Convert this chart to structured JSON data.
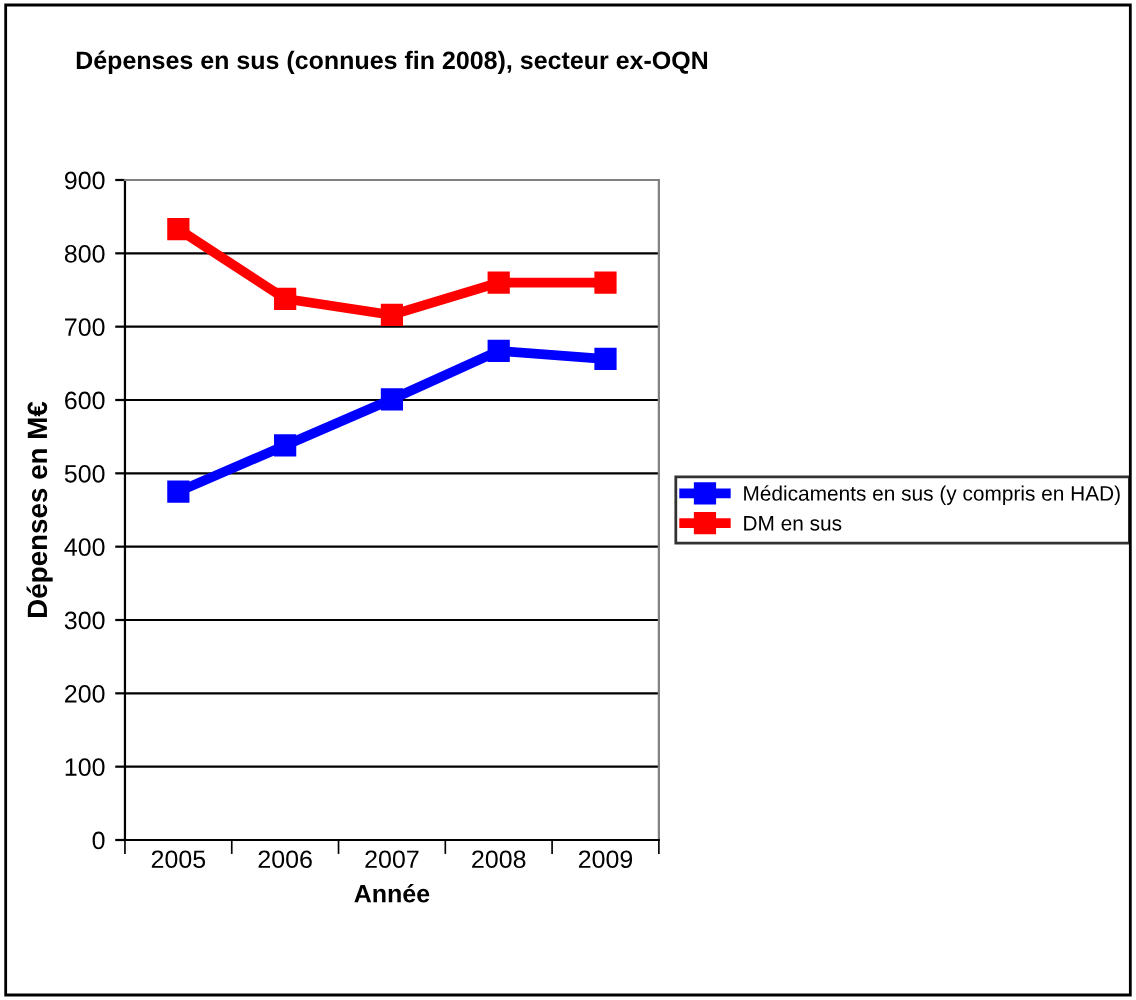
{
  "chart_data": {
    "type": "line",
    "title": "Dépenses en sus (connues fin 2008), secteur ex-OQN",
    "xlabel": "Année",
    "ylabel": "Dépenses en M€",
    "categories": [
      "2005",
      "2006",
      "2007",
      "2008",
      "2009"
    ],
    "series": [
      {
        "name": "Médicaments en sus (y compris en HAD)",
        "color": "#0000ff",
        "values": [
          475,
          538,
          601,
          667,
          656
        ]
      },
      {
        "name": "DM en sus",
        "color": "#ff0000",
        "values": [
          833,
          738,
          716,
          760,
          760
        ]
      }
    ],
    "ylim": [
      0,
      900
    ],
    "yticks": [
      0,
      100,
      200,
      300,
      400,
      500,
      600,
      700,
      800,
      900
    ],
    "grid": "y",
    "legend": "right",
    "marker": "square",
    "line_style": "solid"
  }
}
